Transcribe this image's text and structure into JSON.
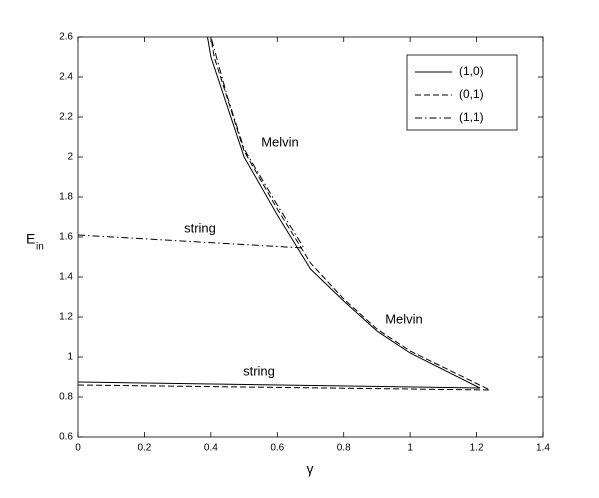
{
  "chart_data": {
    "type": "line",
    "x_label": "γ",
    "y_label": "E",
    "y_label_sub": "in",
    "xlim": [
      0,
      1.4
    ],
    "ylim": [
      0.6,
      2.6
    ],
    "xticks": [
      0,
      0.2,
      0.4,
      0.6,
      0.8,
      1,
      1.2,
      1.4
    ],
    "yticks": [
      0.6,
      0.8,
      1,
      1.2,
      1.4,
      1.6,
      1.8,
      2,
      2.2,
      2.4,
      2.6
    ],
    "grid": false,
    "legend": "upper right",
    "series": [
      {
        "name": "(1,0)",
        "color": "#000000",
        "style": "solid",
        "x": [
          0,
          1.21,
          1.0,
          0.9,
          0.8,
          0.7,
          0.6,
          0.5,
          0.4,
          0.39
        ],
        "values": [
          0.875,
          0.845,
          1.02,
          1.13,
          1.28,
          1.44,
          1.71,
          2.0,
          2.5,
          2.6
        ]
      },
      {
        "name": "(0,1)",
        "color": "#000000",
        "style": "dashed",
        "x": [
          0,
          1.24,
          1.0,
          0.9,
          0.8,
          0.7,
          0.6,
          0.5,
          0.41,
          0.4
        ],
        "values": [
          0.86,
          0.835,
          1.03,
          1.14,
          1.29,
          1.47,
          1.74,
          2.03,
          2.5,
          2.6
        ]
      },
      {
        "name": "(1,1)",
        "color": "#000000",
        "style": "dashdot",
        "x": [
          0,
          0.68,
          0.6,
          0.5,
          0.45,
          0.4
        ],
        "values": [
          1.61,
          1.545,
          1.76,
          2.04,
          2.3,
          2.6
        ]
      }
    ],
    "annotations": [
      "Melvin",
      "string",
      "Melvin",
      "string"
    ]
  }
}
